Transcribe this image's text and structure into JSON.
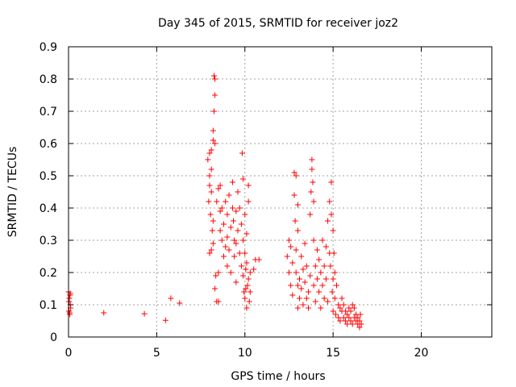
{
  "chart_data": {
    "type": "scatter",
    "title": "Day 345 of 2015, SRMTID for receiver joz2",
    "xlabel": "GPS time / hours",
    "ylabel": "SRMTID / TECUs",
    "xlim": [
      0,
      24
    ],
    "ylim": [
      0,
      0.9
    ],
    "xticks": [
      0,
      5,
      10,
      15,
      20
    ],
    "xtick_labels": [
      "0",
      "5",
      "10",
      "15",
      "20"
    ],
    "yticks": [
      0,
      0.1,
      0.2,
      0.3,
      0.4,
      0.5,
      0.6,
      0.7,
      0.8,
      0.9
    ],
    "ytick_labels": [
      "0",
      "0.1",
      "0.2",
      "0.3",
      "0.4",
      "0.5",
      "0.6",
      "0.7",
      "0.8",
      "0.9"
    ],
    "grid": true,
    "marker": "+",
    "colors": {
      "points": "#ff0000",
      "grid": "#a0a0a0",
      "axes": "#000000"
    },
    "series": [
      {
        "name": "SRMTID",
        "points": [
          [
            0.0,
            0.14
          ],
          [
            0.02,
            0.08
          ],
          [
            0.05,
            0.12
          ],
          [
            0.07,
            0.07
          ],
          [
            0.1,
            0.1
          ],
          [
            0.1,
            0.135
          ],
          [
            0.12,
            0.09
          ],
          [
            0.03,
            0.11
          ],
          [
            0.08,
            0.13
          ],
          [
            0.06,
            0.075
          ],
          [
            2.0,
            0.075
          ],
          [
            4.3,
            0.072
          ],
          [
            5.5,
            0.052
          ],
          [
            5.8,
            0.12
          ],
          [
            6.3,
            0.105
          ],
          [
            7.9,
            0.55
          ],
          [
            8.0,
            0.57
          ],
          [
            8.0,
            0.5
          ],
          [
            8.1,
            0.58
          ],
          [
            8.1,
            0.45
          ],
          [
            8.2,
            0.61
          ],
          [
            8.2,
            0.36
          ],
          [
            8.25,
            0.81
          ],
          [
            8.3,
            0.8
          ],
          [
            8.25,
            0.7
          ],
          [
            8.2,
            0.64
          ],
          [
            8.3,
            0.75
          ],
          [
            8.3,
            0.6
          ],
          [
            8.1,
            0.52
          ],
          [
            8.0,
            0.47
          ],
          [
            7.95,
            0.42
          ],
          [
            8.05,
            0.38
          ],
          [
            8.15,
            0.33
          ],
          [
            8.2,
            0.29
          ],
          [
            8.1,
            0.27
          ],
          [
            8.0,
            0.26
          ],
          [
            8.3,
            0.15
          ],
          [
            8.35,
            0.19
          ],
          [
            8.4,
            0.11
          ],
          [
            8.5,
            0.11
          ],
          [
            8.5,
            0.2
          ],
          [
            8.4,
            0.42
          ],
          [
            8.5,
            0.46
          ],
          [
            8.6,
            0.39
          ],
          [
            8.6,
            0.33
          ],
          [
            8.6,
            0.47
          ],
          [
            8.7,
            0.3
          ],
          [
            8.7,
            0.4
          ],
          [
            8.8,
            0.25
          ],
          [
            8.8,
            0.35
          ],
          [
            8.9,
            0.28
          ],
          [
            8.9,
            0.42
          ],
          [
            9.0,
            0.38
          ],
          [
            9.0,
            0.31
          ],
          [
            9.0,
            0.22
          ],
          [
            9.1,
            0.44
          ],
          [
            9.1,
            0.27
          ],
          [
            9.2,
            0.34
          ],
          [
            9.2,
            0.2
          ],
          [
            9.3,
            0.48
          ],
          [
            9.3,
            0.4
          ],
          [
            9.35,
            0.36
          ],
          [
            9.4,
            0.3
          ],
          [
            9.4,
            0.25
          ],
          [
            9.5,
            0.29
          ],
          [
            9.5,
            0.17
          ],
          [
            9.5,
            0.39
          ],
          [
            9.6,
            0.33
          ],
          [
            9.6,
            0.45
          ],
          [
            9.7,
            0.26
          ],
          [
            9.7,
            0.4
          ],
          [
            9.8,
            0.35
          ],
          [
            9.8,
            0.22
          ],
          [
            9.85,
            0.57
          ],
          [
            9.9,
            0.49
          ],
          [
            9.9,
            0.3
          ],
          [
            9.9,
            0.19
          ],
          [
            9.95,
            0.14
          ],
          [
            10.0,
            0.38
          ],
          [
            10.0,
            0.26
          ],
          [
            10.0,
            0.12
          ],
          [
            10.05,
            0.21
          ],
          [
            10.1,
            0.32
          ],
          [
            10.1,
            0.23
          ],
          [
            10.15,
            0.16
          ],
          [
            10.2,
            0.47
          ],
          [
            10.2,
            0.42
          ],
          [
            10.2,
            0.18
          ],
          [
            10.25,
            0.11
          ],
          [
            10.3,
            0.2
          ],
          [
            10.3,
            0.14
          ],
          [
            10.1,
            0.09
          ],
          [
            10.05,
            0.15
          ],
          [
            10.5,
            0.21
          ],
          [
            10.6,
            0.24
          ],
          [
            10.8,
            0.24
          ],
          [
            12.4,
            0.25
          ],
          [
            12.5,
            0.3
          ],
          [
            12.5,
            0.2
          ],
          [
            12.6,
            0.28
          ],
          [
            12.6,
            0.16
          ],
          [
            12.7,
            0.23
          ],
          [
            12.7,
            0.13
          ],
          [
            12.8,
            0.51
          ],
          [
            12.8,
            0.44
          ],
          [
            12.85,
            0.36
          ],
          [
            12.9,
            0.27
          ],
          [
            12.9,
            0.5
          ],
          [
            12.9,
            0.2
          ],
          [
            13.0,
            0.33
          ],
          [
            13.0,
            0.41
          ],
          [
            13.0,
            0.16
          ],
          [
            13.0,
            0.09
          ],
          [
            13.1,
            0.18
          ],
          [
            13.1,
            0.12
          ],
          [
            13.2,
            0.25
          ],
          [
            13.2,
            0.15
          ],
          [
            13.3,
            0.21
          ],
          [
            13.3,
            0.1
          ],
          [
            13.4,
            0.17
          ],
          [
            13.4,
            0.29
          ],
          [
            13.5,
            0.12
          ],
          [
            13.5,
            0.22
          ],
          [
            13.6,
            0.14
          ],
          [
            13.6,
            0.09
          ],
          [
            13.7,
            0.38
          ],
          [
            13.7,
            0.19
          ],
          [
            13.75,
            0.45
          ],
          [
            13.8,
            0.55
          ],
          [
            13.8,
            0.52
          ],
          [
            13.85,
            0.48
          ],
          [
            13.9,
            0.3
          ],
          [
            13.9,
            0.42
          ],
          [
            13.9,
            0.16
          ],
          [
            14.0,
            0.22
          ],
          [
            14.0,
            0.11
          ],
          [
            14.1,
            0.27
          ],
          [
            14.1,
            0.18
          ],
          [
            14.2,
            0.14
          ],
          [
            14.2,
            0.24
          ],
          [
            14.3,
            0.2
          ],
          [
            14.3,
            0.09
          ],
          [
            14.4,
            0.16
          ],
          [
            14.4,
            0.3
          ],
          [
            14.5,
            0.22
          ],
          [
            14.5,
            0.12
          ],
          [
            14.6,
            0.18
          ],
          [
            14.6,
            0.28
          ],
          [
            14.7,
            0.36
          ],
          [
            14.7,
            0.11
          ],
          [
            14.8,
            0.42
          ],
          [
            14.8,
            0.26
          ],
          [
            14.85,
            0.22
          ],
          [
            14.9,
            0.48
          ],
          [
            14.9,
            0.38
          ],
          [
            14.95,
            0.14
          ],
          [
            15.0,
            0.33
          ],
          [
            15.0,
            0.18
          ],
          [
            15.0,
            0.08
          ],
          [
            15.05,
            0.26
          ],
          [
            15.1,
            0.12
          ],
          [
            15.1,
            0.2
          ],
          [
            15.15,
            0.07
          ],
          [
            15.2,
            0.16
          ],
          [
            15.3,
            0.1
          ],
          [
            15.3,
            0.06
          ],
          [
            15.4,
            0.09
          ],
          [
            15.4,
            0.05
          ],
          [
            15.5,
            0.08
          ],
          [
            15.5,
            0.12
          ],
          [
            15.6,
            0.06
          ],
          [
            15.6,
            0.1
          ],
          [
            15.7,
            0.05
          ],
          [
            15.7,
            0.08
          ],
          [
            15.8,
            0.07
          ],
          [
            15.8,
            0.04
          ],
          [
            15.9,
            0.09
          ],
          [
            15.9,
            0.06
          ],
          [
            16.0,
            0.05
          ],
          [
            16.0,
            0.08
          ],
          [
            16.1,
            0.1
          ],
          [
            16.1,
            0.04
          ],
          [
            16.2,
            0.06
          ],
          [
            16.2,
            0.09
          ],
          [
            16.3,
            0.05
          ],
          [
            16.3,
            0.07
          ],
          [
            16.4,
            0.04
          ],
          [
            16.4,
            0.06
          ],
          [
            16.5,
            0.03
          ],
          [
            16.5,
            0.05
          ],
          [
            16.55,
            0.07
          ],
          [
            16.6,
            0.04
          ]
        ]
      }
    ]
  }
}
